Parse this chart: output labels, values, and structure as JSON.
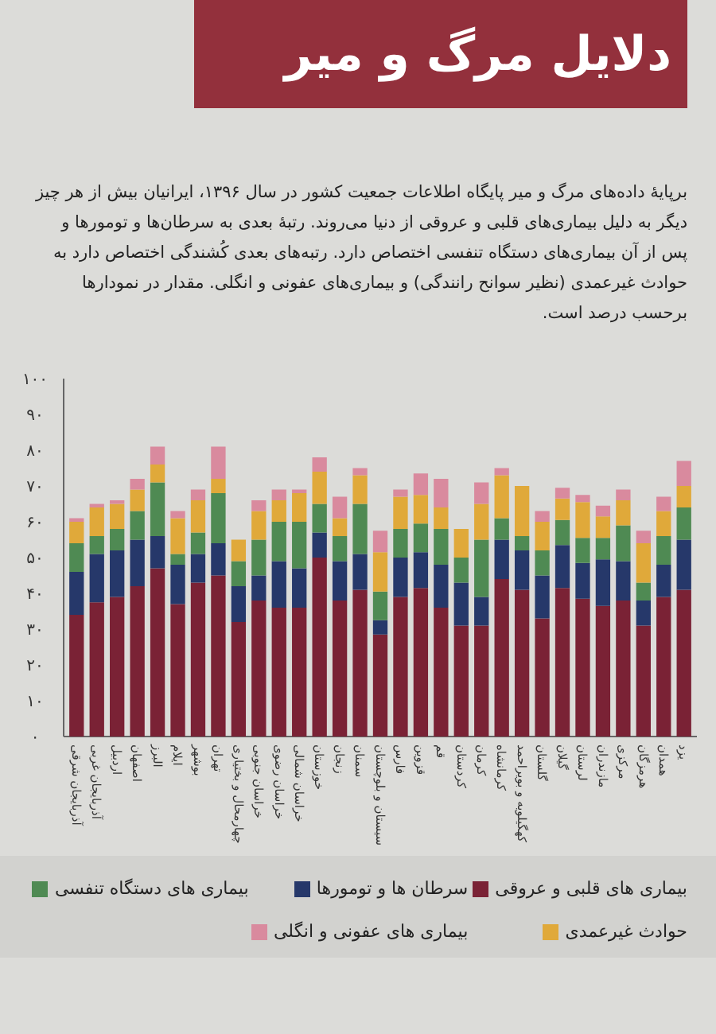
{
  "chart_data": {
    "type": "bar",
    "stacked": true,
    "title": "دلایل مرگ و میر",
    "subtitle": "برپایهٔ داده‌های مرگ و میر پایگاه اطلاعات جمعیت کشور در سال ۱۳۹۶، ایرانیان بیش از هر چیز دیگر به دلیل بیماری‌های قلبی و عروقی از دنیا می‌روند. رتبهٔ بعدی به سرطان‌ها و تومورها و پس از آن بیماری‌های دستگاه تنفسی اختصاص دارد. رتبه‌های بعدی کُشندگی اختصاص دارد به حوادث غیرعمدی (نظیر سوانح رانندگی) و بیماری‌های عفونی و انگلی. مقدار در نمودارها برحسب درصد است.",
    "categories": [
      "آذربایجان شرقی",
      "آذربایجان غربی",
      "اردبیل",
      "اصفهان",
      "البرز",
      "ایلام",
      "بوشهر",
      "تهران",
      "چهارمحال و بختیاری",
      "خراسان جنوبی",
      "خراسان رضوی",
      "خراسان شمالی",
      "خوزستان",
      "زنجان",
      "سمنان",
      "سیستان و بلوچستان",
      "فارس",
      "قزوین",
      "قم",
      "کردستان",
      "کرمان",
      "کرمانشاه",
      "کهگیلویه و بویراحمد",
      "گلستان",
      "گیلان",
      "لرستان",
      "مازندران",
      "مرکزی",
      "هرمزگان",
      "همدان",
      "یزد"
    ],
    "series": [
      {
        "name": "بیماری های قلبی و عروقی",
        "color": "#7a2235",
        "values": [
          34,
          37.5,
          39,
          42,
          47,
          37,
          43,
          45,
          32,
          38,
          36,
          36,
          50,
          38,
          41,
          28.5,
          39,
          41.5,
          36,
          31,
          31,
          44,
          41,
          33,
          41.5,
          38.5,
          36.5,
          38,
          31,
          39,
          41
        ]
      },
      {
        "name": "سرطان ها و تومورها",
        "color": "#26386a",
        "values": [
          12,
          13.5,
          13,
          13,
          9,
          11,
          8,
          9,
          10,
          7,
          13,
          11,
          7,
          11,
          10,
          4,
          11,
          10,
          12,
          12,
          8,
          11,
          11,
          12,
          12,
          10,
          13,
          11,
          7,
          9,
          14
        ]
      },
      {
        "name": "بیماری های دستگاه تنفسی",
        "color": "#4f8a53",
        "values": [
          8,
          5,
          6,
          8,
          15,
          3,
          6,
          14,
          7,
          10,
          11,
          13,
          8,
          7,
          14,
          8,
          8,
          8,
          10,
          7,
          16,
          6,
          4,
          7,
          7,
          7,
          6,
          10,
          5,
          8,
          9
        ]
      },
      {
        "name": "حوادث غیرعمدی",
        "color": "#e0a93a",
        "values": [
          6,
          8,
          7,
          6,
          5,
          10,
          9,
          4,
          6,
          8,
          6,
          8,
          9,
          5,
          8,
          11,
          9,
          8,
          6,
          8,
          10,
          12,
          14,
          8,
          6,
          10,
          6,
          7,
          11,
          7,
          6
        ]
      },
      {
        "name": "بیماری های عفونی و انگلی",
        "color": "#d98a9e",
        "values": [
          1,
          1,
          1,
          3,
          5,
          2,
          3,
          9,
          null,
          3,
          3,
          1,
          4,
          6,
          2,
          6,
          2,
          6,
          8,
          null,
          6,
          2,
          null,
          3,
          3,
          2,
          3,
          3,
          3.5,
          4,
          7
        ]
      }
    ],
    "ylim": [
      0,
      100
    ],
    "yticks": [
      {
        "value": 0,
        "label": "۰"
      },
      {
        "value": 10,
        "label": "۱۰"
      },
      {
        "value": 20,
        "label": "۲۰"
      },
      {
        "value": 30,
        "label": "۳۰"
      },
      {
        "value": 40,
        "label": "۴۰"
      },
      {
        "value": 50,
        "label": "۵۰"
      },
      {
        "value": 60,
        "label": "۶۰"
      },
      {
        "value": 70,
        "label": "۷۰"
      },
      {
        "value": 80,
        "label": "۸۰"
      },
      {
        "value": 90,
        "label": "۹۰"
      },
      {
        "value": 100,
        "label": "۱۰۰"
      }
    ],
    "legend": "bottom"
  }
}
